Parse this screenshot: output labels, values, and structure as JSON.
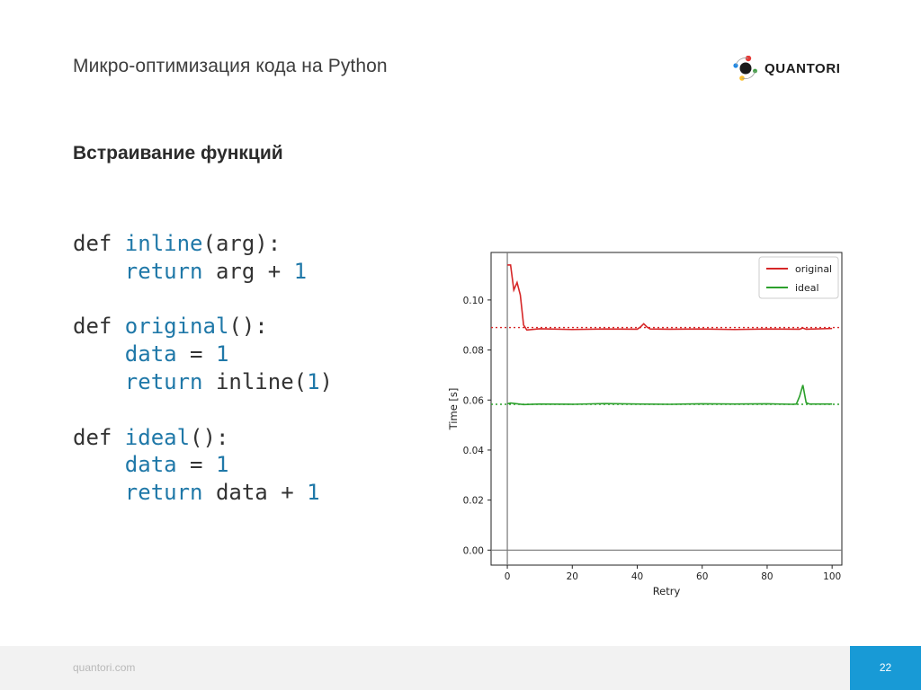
{
  "slide": {
    "title": "Микро-оптимизация кода на Python",
    "subtitle": "Встраивание функций"
  },
  "logo": {
    "text": "QUANTORI"
  },
  "code": [
    [
      {
        "t": "def ",
        "c": "kw"
      },
      {
        "t": "inline",
        "c": "fn"
      },
      {
        "t": "(arg):",
        "c": "kw"
      }
    ],
    [
      {
        "t": "    ",
        "c": "kw"
      },
      {
        "t": "return",
        "c": "fn"
      },
      {
        "t": " arg + ",
        "c": "kw"
      },
      {
        "t": "1",
        "c": "num"
      }
    ],
    [],
    [
      {
        "t": "def ",
        "c": "kw"
      },
      {
        "t": "original",
        "c": "fn"
      },
      {
        "t": "():",
        "c": "kw"
      }
    ],
    [
      {
        "t": "    ",
        "c": "kw"
      },
      {
        "t": "data",
        "c": "fn"
      },
      {
        "t": " = ",
        "c": "kw"
      },
      {
        "t": "1",
        "c": "num"
      }
    ],
    [
      {
        "t": "    ",
        "c": "kw"
      },
      {
        "t": "return",
        "c": "fn"
      },
      {
        "t": " inline(",
        "c": "kw"
      },
      {
        "t": "1",
        "c": "num"
      },
      {
        "t": ")",
        "c": "kw"
      }
    ],
    [],
    [
      {
        "t": "def ",
        "c": "kw"
      },
      {
        "t": "ideal",
        "c": "fn"
      },
      {
        "t": "():",
        "c": "kw"
      }
    ],
    [
      {
        "t": "    ",
        "c": "kw"
      },
      {
        "t": "data",
        "c": "fn"
      },
      {
        "t": " = ",
        "c": "kw"
      },
      {
        "t": "1",
        "c": "num"
      }
    ],
    [
      {
        "t": "    ",
        "c": "kw"
      },
      {
        "t": "return",
        "c": "fn"
      },
      {
        "t": " data + ",
        "c": "kw"
      },
      {
        "t": "1",
        "c": "num"
      }
    ]
  ],
  "chart_data": {
    "type": "line",
    "title": "",
    "xlabel": "Retry",
    "ylabel": "Time [s]",
    "xlim": [
      -5,
      103
    ],
    "ylim": [
      -0.006,
      0.119
    ],
    "xticks": [
      0,
      20,
      40,
      60,
      80,
      100
    ],
    "yticks": [
      0.0,
      0.02,
      0.04,
      0.06,
      0.08,
      0.1
    ],
    "ytick_labels": [
      "0.00",
      "0.02",
      "0.04",
      "0.06",
      "0.08",
      "0.10"
    ],
    "grid": false,
    "legend_position": "top-right",
    "series": [
      {
        "name": "original",
        "color": "#d62728",
        "x": [
          0,
          1,
          2,
          3,
          4,
          5,
          6,
          10,
          20,
          30,
          40,
          41,
          42,
          43,
          44,
          50,
          60,
          70,
          80,
          90,
          91,
          92,
          100
        ],
        "y": [
          0.114,
          0.114,
          0.104,
          0.107,
          0.102,
          0.09,
          0.088,
          0.0885,
          0.0882,
          0.0884,
          0.0883,
          0.0892,
          0.0905,
          0.0892,
          0.0884,
          0.0883,
          0.0884,
          0.0882,
          0.0884,
          0.0883,
          0.0888,
          0.0883,
          0.0886
        ],
        "mean": 0.089
      },
      {
        "name": "ideal",
        "color": "#2ca02c",
        "x": [
          0,
          1,
          5,
          10,
          20,
          30,
          40,
          50,
          60,
          70,
          80,
          88,
          89,
          90,
          91,
          92,
          93,
          100
        ],
        "y": [
          0.0585,
          0.0588,
          0.0582,
          0.0584,
          0.0583,
          0.0586,
          0.0584,
          0.0583,
          0.0585,
          0.0584,
          0.0585,
          0.0583,
          0.0584,
          0.0615,
          0.066,
          0.059,
          0.0584,
          0.0584
        ],
        "mean": 0.0583
      }
    ]
  },
  "footer": {
    "url": "quantori.com",
    "page": "22"
  },
  "colors": {
    "accent": "#189ad6",
    "code_highlight": "#1f78a8",
    "footer_bg": "#f2f2f2"
  }
}
